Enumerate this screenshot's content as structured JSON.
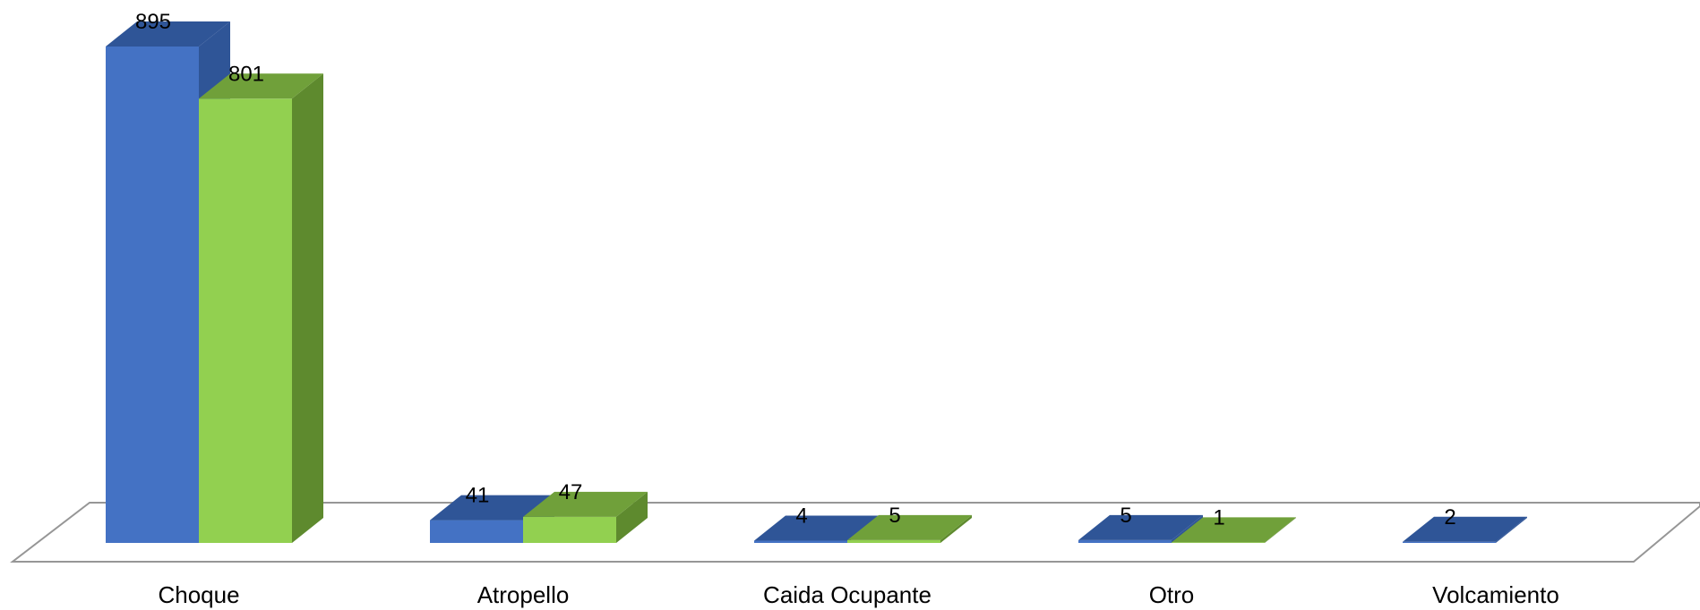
{
  "chart_data": {
    "type": "bar",
    "style": "3d-clustered-column",
    "categories": [
      "Choque",
      "Atropello",
      "Caida Ocupante",
      "Otro",
      "Volcamiento"
    ],
    "series": [
      {
        "values": [
          895,
          41,
          4,
          5,
          2
        ],
        "color": "#4472C4",
        "top_color": "#2F5597",
        "side_color": "#2F5597"
      },
      {
        "values": [
          801,
          47,
          5,
          1,
          null
        ],
        "color": "#92D050",
        "top_color": "#70A03A",
        "side_color": "#5E8A2E"
      }
    ],
    "ylim": [
      0,
      895
    ],
    "grid": false,
    "legend": "none"
  }
}
